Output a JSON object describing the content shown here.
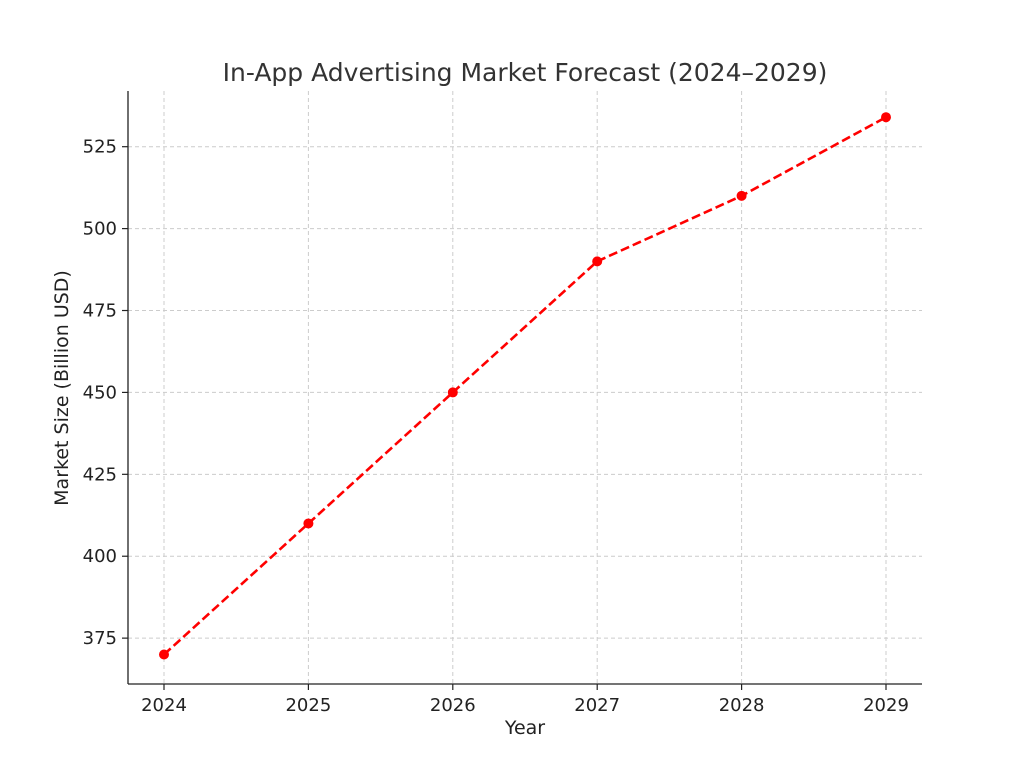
{
  "chart_data": {
    "type": "line",
    "title": "In-App Advertising Market Forecast (2024–2029)",
    "xlabel": "Year",
    "ylabel": "Market Size (Billion USD)",
    "x": [
      "2024",
      "2025",
      "2026",
      "2027",
      "2028",
      "2029"
    ],
    "series": [
      {
        "values": [
          370,
          410,
          450,
          490,
          510,
          534
        ],
        "color": "#ff0000",
        "line_style": "dashed",
        "marker": "circle"
      }
    ],
    "yticks": [
      375,
      400,
      425,
      450,
      475,
      500,
      525
    ],
    "ylim": [
      361,
      542
    ],
    "grid": true
  }
}
